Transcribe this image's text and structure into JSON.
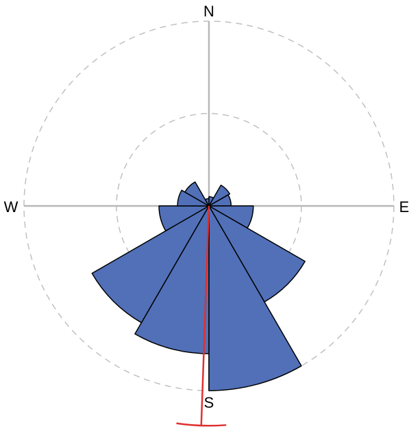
{
  "chart_data": {
    "type": "rose",
    "direction_labels": {
      "north": "N",
      "east": "E",
      "south": "S",
      "west": "W"
    },
    "bin_width_deg": 30,
    "rmax": 1.0,
    "grid_rings": [
      0.5,
      1.0
    ],
    "grid": true,
    "bars": [
      {
        "center_deg": 15,
        "value": 0.05
      },
      {
        "center_deg": 45,
        "value": 0.13
      },
      {
        "center_deg": 75,
        "value": 0.12
      },
      {
        "center_deg": 105,
        "value": 0.24
      },
      {
        "center_deg": 135,
        "value": 0.6
      },
      {
        "center_deg": 165,
        "value": 1.0
      },
      {
        "center_deg": 195,
        "value": 0.8
      },
      {
        "center_deg": 225,
        "value": 0.73
      },
      {
        "center_deg": 255,
        "value": 0.27
      },
      {
        "center_deg": 285,
        "value": 0.17
      },
      {
        "center_deg": 315,
        "value": 0.15
      },
      {
        "center_deg": 345,
        "value": 0.04
      }
    ],
    "mean_direction_deg": 182,
    "mean_resultant_length": 1.19,
    "colors": {
      "bar_fill": "#5170b8",
      "bar_stroke": "#000000",
      "mean_line": "#e03030",
      "axes": "#b8b8b8",
      "rings": "#c0c0c0"
    }
  }
}
